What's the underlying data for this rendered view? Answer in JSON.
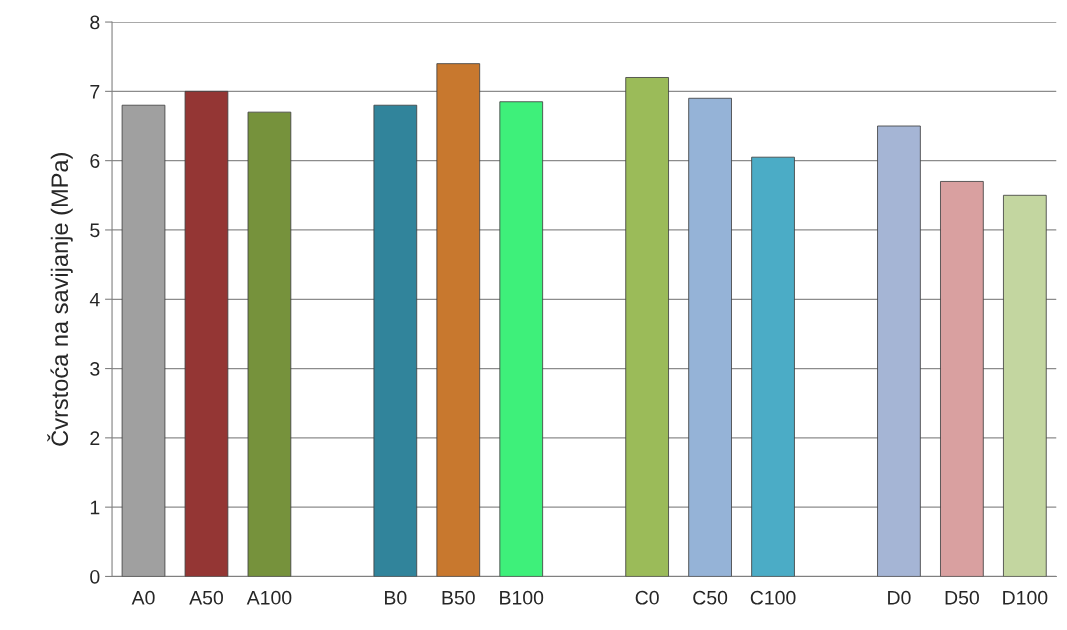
{
  "chart_data": {
    "type": "bar",
    "ylabel": "Čvrstoća na savijanje (MPa)",
    "categories": [
      "A0",
      "A50",
      "A100",
      null,
      "B0",
      "B50",
      "B100",
      null,
      "C0",
      "C50",
      "C100",
      null,
      "D0",
      "D50",
      "D100"
    ],
    "values": [
      6.8,
      7.0,
      6.7,
      null,
      6.8,
      7.4,
      6.85,
      null,
      7.2,
      6.9,
      6.05,
      null,
      6.5,
      5.7,
      5.5
    ],
    "colors": [
      "#a0a0a0",
      "#943634",
      "#76923c",
      null,
      "#31849b",
      "#c8782e",
      "#3ef07a",
      null,
      "#9bbb59",
      "#95b3d7",
      "#4bacc6",
      null,
      "#a5b5d5",
      "#d9a0a0",
      "#c3d6a0"
    ],
    "ylim": [
      0,
      8
    ],
    "yticks": [
      0,
      1,
      2,
      3,
      4,
      5,
      6,
      7,
      8
    ],
    "grid": "y",
    "legend": false
  }
}
